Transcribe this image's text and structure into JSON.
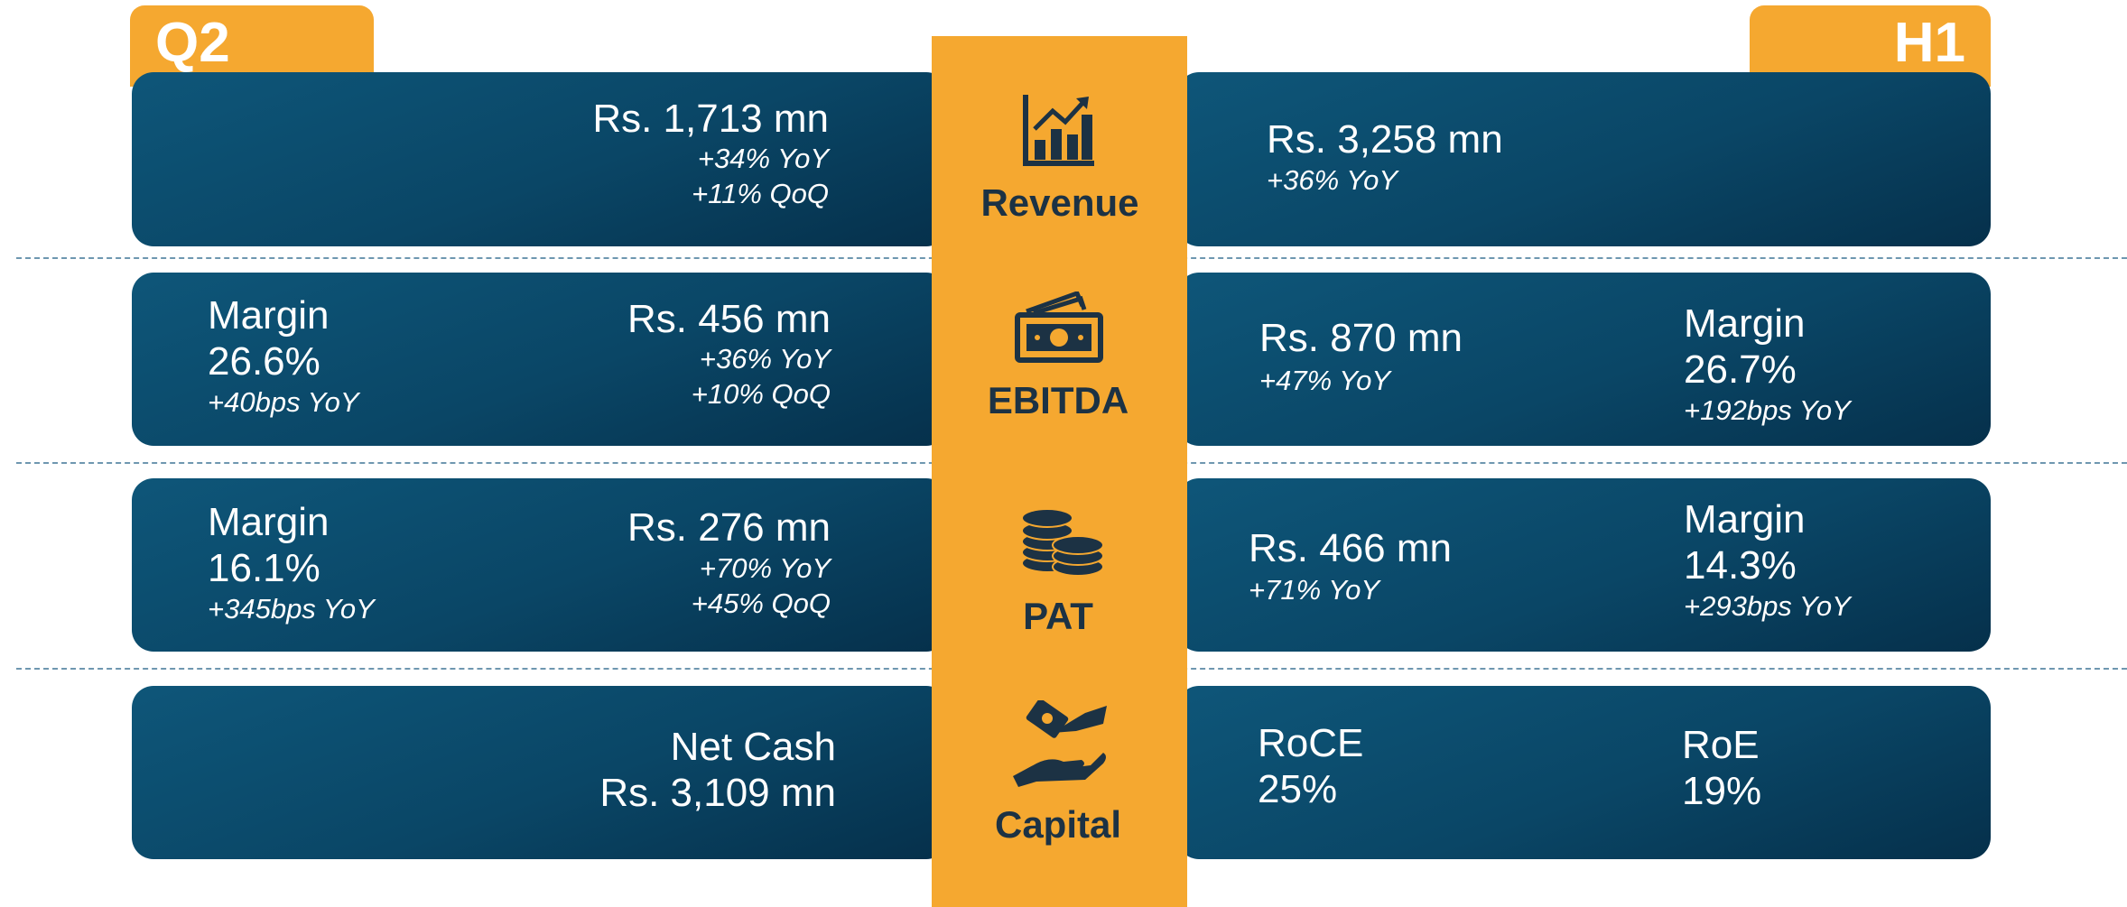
{
  "header": {
    "left_tab": "Q2",
    "right_tab": "H1"
  },
  "rows": [
    {
      "label": "Revenue",
      "q2": {
        "value": "Rs. 1,713 mn",
        "changes": [
          "+34% YoY",
          "+11% QoQ"
        ]
      },
      "h1": {
        "value": "Rs. 3,258 mn",
        "changes": [
          "+36% YoY"
        ]
      }
    },
    {
      "label": "EBITDA",
      "q2": {
        "margin_label": "Margin",
        "margin": "26.6%",
        "margin_change": "+40bps YoY",
        "value": "Rs. 456 mn",
        "changes": [
          "+36% YoY",
          "+10% QoQ"
        ]
      },
      "h1": {
        "value": "Rs. 870 mn",
        "changes": [
          "+47% YoY"
        ],
        "margin_label": "Margin",
        "margin": "26.7%",
        "margin_change": "+192bps YoY"
      }
    },
    {
      "label": "PAT",
      "q2": {
        "margin_label": "Margin",
        "margin": "16.1%",
        "margin_change": "+345bps YoY",
        "value": "Rs. 276 mn",
        "changes": [
          "+70% YoY",
          "+45% QoQ"
        ]
      },
      "h1": {
        "value": "Rs. 466 mn",
        "changes": [
          "+71% YoY"
        ],
        "margin_label": "Margin",
        "margin": "14.3%",
        "margin_change": "+293bps YoY"
      }
    },
    {
      "label": "Capital",
      "q2": {
        "value_label": "Net Cash",
        "value": "Rs. 3,109 mn"
      },
      "h1": {
        "metrics": [
          {
            "label": "RoCE",
            "value": "25%"
          },
          {
            "label": "RoE",
            "value": "19%"
          }
        ]
      }
    }
  ]
}
